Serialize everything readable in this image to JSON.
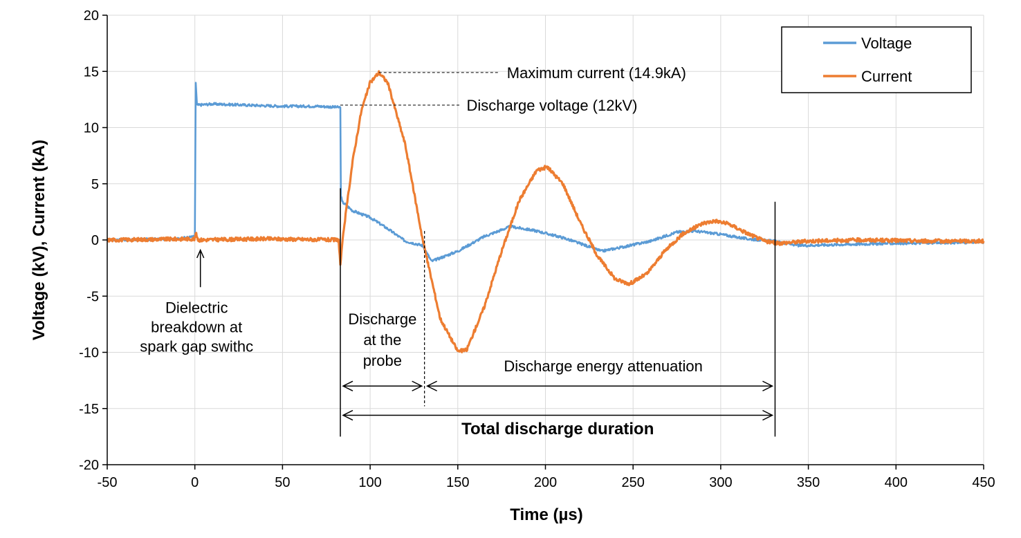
{
  "chart_data": {
    "type": "line",
    "title": "",
    "xlabel": "Time (µs)",
    "ylabel": "Voltage (kV), Current (kA)",
    "xlim": [
      -50,
      450
    ],
    "ylim": [
      -20,
      20
    ],
    "x_ticks": [
      -50,
      0,
      50,
      100,
      150,
      200,
      250,
      300,
      350,
      400,
      450
    ],
    "y_ticks": [
      -20,
      -15,
      -10,
      -5,
      0,
      5,
      10,
      15,
      20
    ],
    "grid": true,
    "legend_position": "top-right",
    "series": [
      {
        "name": "Voltage",
        "color": "#5B9BD5",
        "points": [
          [
            -50,
            0.0
          ],
          [
            -10,
            0.1
          ],
          [
            0,
            0.3
          ],
          [
            0.5,
            14.0
          ],
          [
            1.2,
            12.0
          ],
          [
            10,
            12.1
          ],
          [
            30,
            12.0
          ],
          [
            50,
            11.9
          ],
          [
            70,
            11.9
          ],
          [
            83,
            11.8
          ],
          [
            83.3,
            4.0
          ],
          [
            84,
            3.4
          ],
          [
            90,
            2.6
          ],
          [
            100,
            2.0
          ],
          [
            110,
            1.0
          ],
          [
            120,
            -0.1
          ],
          [
            130,
            -0.5
          ],
          [
            135,
            -1.9
          ],
          [
            150,
            -1.0
          ],
          [
            165,
            0.3
          ],
          [
            180,
            1.2
          ],
          [
            195,
            0.8
          ],
          [
            210,
            0.2
          ],
          [
            225,
            -0.6
          ],
          [
            232,
            -1.0
          ],
          [
            245,
            -0.6
          ],
          [
            260,
            -0.1
          ],
          [
            275,
            0.7
          ],
          [
            285,
            0.8
          ],
          [
            300,
            0.5
          ],
          [
            315,
            0.1
          ],
          [
            330,
            -0.1
          ],
          [
            345,
            -0.5
          ],
          [
            370,
            -0.4
          ],
          [
            400,
            -0.3
          ],
          [
            450,
            -0.2
          ]
        ]
      },
      {
        "name": "Current",
        "color": "#ED7D31",
        "points": [
          [
            -50,
            0.0
          ],
          [
            0,
            0.1
          ],
          [
            0.5,
            0.6
          ],
          [
            2,
            0.0
          ],
          [
            40,
            0.1
          ],
          [
            82,
            0.0
          ],
          [
            83,
            -2.2
          ],
          [
            85,
            1.0
          ],
          [
            90,
            7.0
          ],
          [
            95,
            11.5
          ],
          [
            100,
            14.0
          ],
          [
            105,
            14.9
          ],
          [
            110,
            14.0
          ],
          [
            120,
            8.5
          ],
          [
            130,
            0.0
          ],
          [
            140,
            -7.0
          ],
          [
            150,
            -9.9
          ],
          [
            155,
            -9.8
          ],
          [
            165,
            -6.0
          ],
          [
            175,
            -1.0
          ],
          [
            185,
            3.5
          ],
          [
            195,
            6.2
          ],
          [
            201,
            6.5
          ],
          [
            210,
            5.0
          ],
          [
            220,
            1.5
          ],
          [
            230,
            -1.5
          ],
          [
            240,
            -3.5
          ],
          [
            248,
            -3.9
          ],
          [
            258,
            -3.0
          ],
          [
            268,
            -1.0
          ],
          [
            278,
            0.5
          ],
          [
            290,
            1.5
          ],
          [
            297,
            1.7
          ],
          [
            305,
            1.4
          ],
          [
            315,
            0.6
          ],
          [
            325,
            -0.1
          ],
          [
            332,
            -0.3
          ],
          [
            350,
            -0.1
          ],
          [
            380,
            0.0
          ],
          [
            420,
            -0.1
          ],
          [
            450,
            -0.1
          ]
        ]
      }
    ],
    "annotations": {
      "max_current": "Maximum current (14.9kA)",
      "discharge_voltage": "Discharge voltage (12kV)",
      "breakdown": [
        "Dielectric",
        "breakdown at",
        "spark gap swithc"
      ],
      "probe_discharge": [
        "Discharge",
        "at the",
        "probe"
      ],
      "attenuation": "Discharge energy attenuation",
      "total_duration": "Total discharge duration"
    },
    "markers": {
      "breakdown_time": 0,
      "probe_start": 83,
      "probe_end": 131,
      "attenuation_end": 331,
      "max_current_point": [
        105,
        14.9
      ],
      "discharge_voltage_point": [
        83,
        12
      ]
    }
  }
}
